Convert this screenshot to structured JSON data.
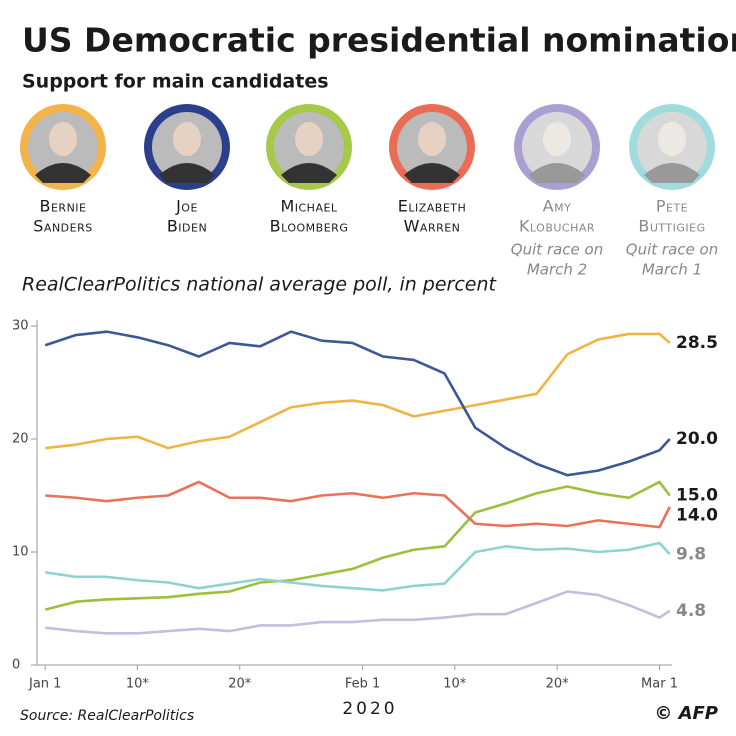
{
  "header": {
    "title": "US Democratic presidential nomination",
    "subtitle": "Support for main candidates"
  },
  "candidates": [
    {
      "first": "Bernie",
      "last": "Sanders",
      "color": "#f2b348"
    },
    {
      "first": "Joe",
      "last": "Biden",
      "color": "#2c3f8c"
    },
    {
      "first": "Michael",
      "last": "Bloomberg",
      "color": "#a6c94a"
    },
    {
      "first": "Elizabeth",
      "last": "Warren",
      "color": "#e96d55"
    },
    {
      "first": "Amy",
      "last": "Klobuchar",
      "color": "#a99fd3",
      "note": [
        "Quit race on",
        "March 2"
      ]
    },
    {
      "first": "Pete",
      "last": "Buttigieg",
      "color": "#9fdcdb",
      "note": [
        "Quit race on",
        "March 1"
      ]
    }
  ],
  "chart_data": {
    "type": "line",
    "subtitle": "RealClearPolitics national average poll, in percent",
    "x_label": "2020",
    "x": [
      "2020-01-01",
      "2020-01-04",
      "2020-01-07",
      "2020-01-10",
      "2020-01-13",
      "2020-01-16",
      "2020-01-19",
      "2020-01-22",
      "2020-01-25",
      "2020-01-28",
      "2020-01-31",
      "2020-02-03",
      "2020-02-06",
      "2020-02-09",
      "2020-02-12",
      "2020-02-15",
      "2020-02-18",
      "2020-02-21",
      "2020-02-24",
      "2020-02-27",
      "2020-03-01",
      "2020-03-02"
    ],
    "xlim": [
      "2019-12-31",
      "2020-03-03"
    ],
    "xticks": [
      {
        "value": "2020-01-01",
        "label": "Jan 1"
      },
      {
        "value": "2020-01-10",
        "label": "10*"
      },
      {
        "value": "2020-01-20",
        "label": "20*"
      },
      {
        "value": "2020-02-01",
        "label": "Feb 1"
      },
      {
        "value": "2020-02-10",
        "label": "10*"
      },
      {
        "value": "2020-02-20",
        "label": "20*"
      },
      {
        "value": "2020-03-01",
        "label": "Mar 1"
      }
    ],
    "ylim": [
      0,
      30
    ],
    "yticks": [
      0,
      10,
      20,
      30
    ],
    "grid": false,
    "series": [
      {
        "color": "#f0b445",
        "values": [
          19.2,
          19.5,
          20,
          20.2,
          19.2,
          19.8,
          20.2,
          21.5,
          22.8,
          23.2,
          23.4,
          23,
          22,
          22.5,
          23,
          23.5,
          24,
          27.5,
          28.8,
          29.3,
          29.3,
          28.5
        ],
        "value_labels": [
          null,
          null,
          null,
          null,
          null,
          null,
          null,
          null,
          null,
          null,
          null,
          null,
          null,
          null,
          null,
          null,
          null,
          null,
          null,
          null,
          null,
          "28.5"
        ]
      },
      {
        "color": "#3d5898",
        "values": [
          28.3,
          29.2,
          29.5,
          29,
          28.3,
          27.3,
          28.5,
          28.2,
          29.5,
          28.7,
          28.5,
          27.3,
          27,
          25.8,
          21,
          19.2,
          17.8,
          16.8,
          17.2,
          18,
          19,
          20.0
        ],
        "value_labels": [
          null,
          null,
          null,
          null,
          null,
          null,
          null,
          null,
          null,
          null,
          null,
          null,
          null,
          null,
          null,
          null,
          null,
          null,
          null,
          null,
          null,
          "20.0"
        ]
      },
      {
        "color": "#9cc03a",
        "values": [
          4.9,
          5.6,
          5.8,
          5.9,
          6,
          6.3,
          6.5,
          7.3,
          7.5,
          8,
          8.5,
          9.5,
          10.2,
          10.5,
          13.5,
          14.3,
          15.2,
          15.8,
          15.2,
          14.8,
          16.2,
          15.0
        ],
        "value_labels": [
          null,
          null,
          null,
          null,
          null,
          null,
          null,
          null,
          null,
          null,
          null,
          null,
          null,
          null,
          null,
          null,
          null,
          null,
          null,
          null,
          null,
          "15.0"
        ]
      },
      {
        "color": "#e8735a",
        "values": [
          15,
          14.8,
          14.5,
          14.8,
          15,
          16.2,
          14.8,
          14.8,
          14.5,
          15,
          15.2,
          14.8,
          15.2,
          15,
          12.5,
          12.3,
          12.5,
          12.3,
          12.8,
          12.5,
          12.2,
          14.0
        ],
        "value_labels": [
          null,
          null,
          null,
          null,
          null,
          null,
          null,
          null,
          null,
          null,
          null,
          null,
          null,
          null,
          null,
          null,
          null,
          null,
          null,
          null,
          null,
          "14.0"
        ]
      },
      {
        "color": "#c5bde0",
        "values": [
          3.3,
          3.0,
          2.8,
          2.8,
          3.0,
          3.2,
          3.0,
          3.5,
          3.5,
          3.8,
          3.8,
          4.0,
          4.0,
          4.2,
          4.5,
          4.5,
          5.5,
          6.5,
          6.2,
          5.3,
          4.2,
          4.8
        ],
        "value_labels": [
          null,
          null,
          null,
          null,
          null,
          null,
          null,
          null,
          null,
          null,
          null,
          null,
          null,
          null,
          null,
          null,
          null,
          null,
          null,
          null,
          null,
          "4.8"
        ]
      },
      {
        "color": "#8fd3d1",
        "values": [
          8.2,
          7.8,
          7.8,
          7.5,
          7.3,
          6.8,
          7.2,
          7.6,
          7.3,
          7.0,
          6.8,
          6.6,
          7.0,
          7.2,
          10.0,
          10.5,
          10.2,
          10.3,
          10.0,
          10.2,
          10.8,
          9.8
        ],
        "value_labels": [
          null,
          null,
          null,
          null,
          null,
          null,
          null,
          null,
          null,
          null,
          null,
          null,
          null,
          null,
          null,
          null,
          null,
          null,
          null,
          null,
          null,
          "9.8"
        ]
      }
    ]
  },
  "footer": {
    "source": "Source: RealClearPolitics",
    "credit": "© AFP"
  }
}
